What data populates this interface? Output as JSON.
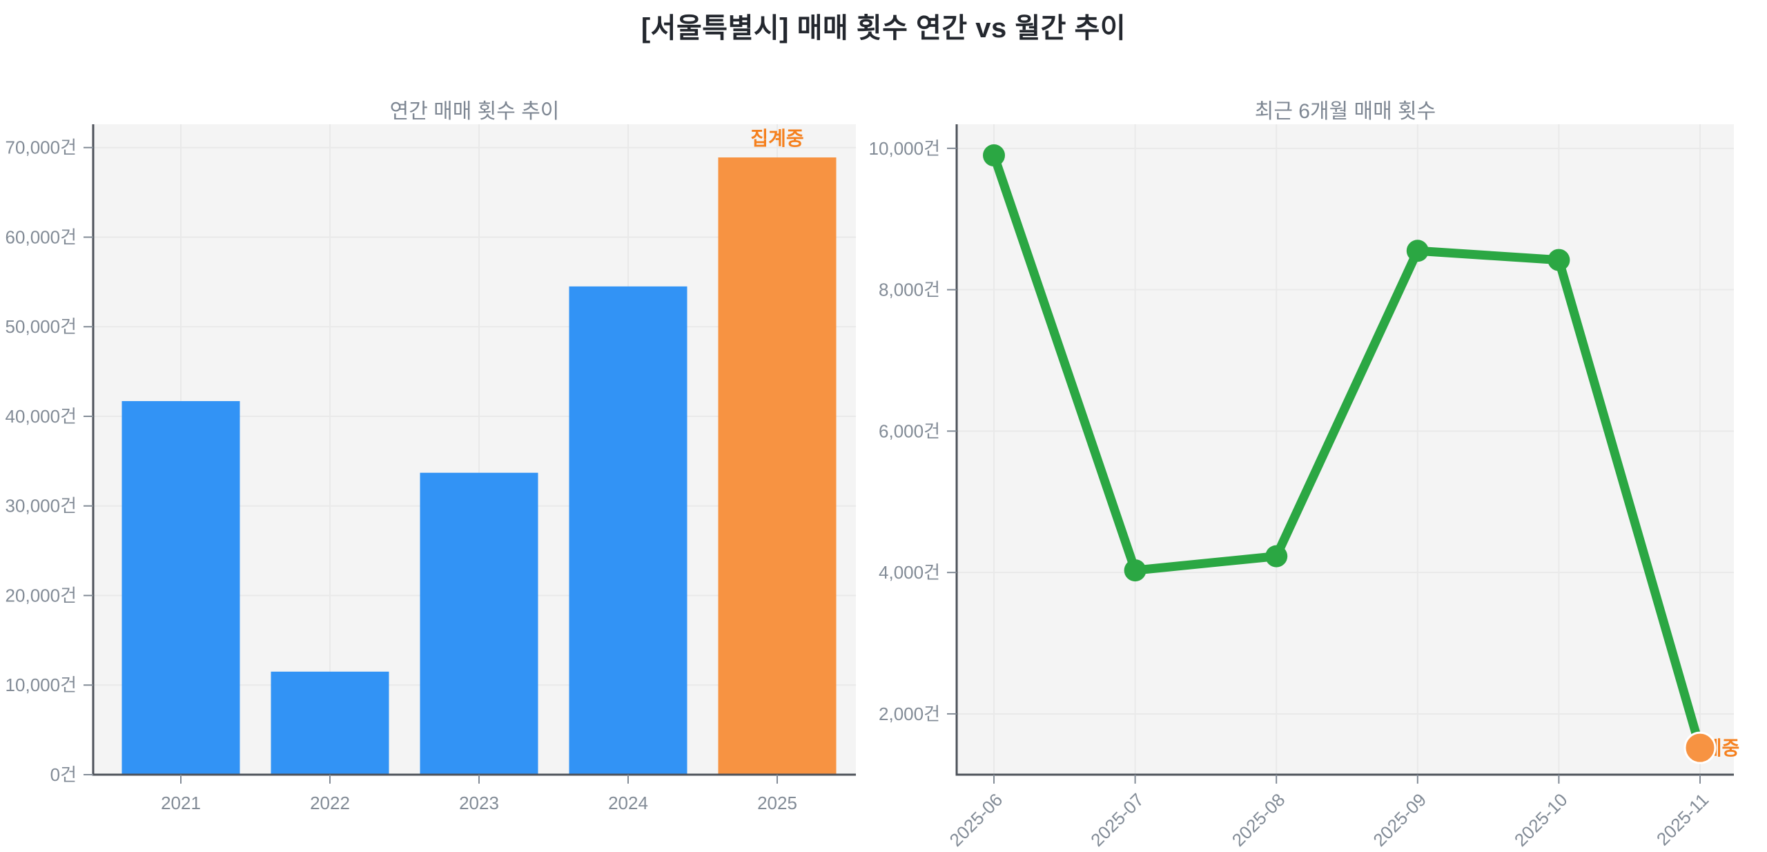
{
  "title": "[서울특별시] 매매 횟수 연간 vs 월간 추이",
  "theme": {
    "figure_bg": "#ffffff",
    "plot_bg": "#f4f4f4",
    "grid_color": "#e9e9e9",
    "axis_color": "#4d525a",
    "tick_label_color": "#828b96",
    "chart_title_color": "#7d8692",
    "main_title_color": "#23272e"
  },
  "chart_data": [
    {
      "type": "bar",
      "title": "연간 매매 횟수 추이",
      "unit": "건",
      "categories": [
        "2021",
        "2022",
        "2023",
        "2024",
        "2025"
      ],
      "values": [
        41700,
        11500,
        33700,
        54500,
        68900
      ],
      "bar_color": "#3293F5",
      "highlight": {
        "index": 4,
        "color": "#F79342",
        "label": "집계중",
        "label_color": "#F5801E"
      },
      "yticks": {
        "values": [
          0,
          10000,
          20000,
          30000,
          40000,
          50000,
          60000,
          70000
        ],
        "labels": [
          "0건",
          "10,000건",
          "20,000건",
          "30,000건",
          "40,000건",
          "50,000건",
          "60,000건",
          "70,000건"
        ]
      },
      "ylim": [
        0,
        72600
      ],
      "grid": true,
      "legend": false
    },
    {
      "type": "line",
      "title": "최근 6개월 매매 횟수",
      "unit": "건",
      "categories": [
        "2025-06",
        "2025-07",
        "2025-08",
        "2025-09",
        "2025-10",
        "2025-11"
      ],
      "values": [
        9900,
        4030,
        4230,
        8550,
        8420,
        1520
      ],
      "line_color": "#2BA743",
      "marker_color": "#2BA743",
      "highlight": {
        "index": 5,
        "color": "#F79342",
        "label": "집계중",
        "label_color": "#F5801E"
      },
      "yticks": {
        "values": [
          2000,
          4000,
          6000,
          8000,
          10000
        ],
        "labels": [
          "2,000건",
          "4,000건",
          "6,000건",
          "8,000건",
          "10,000건"
        ]
      },
      "ylim": [
        1140,
        10340
      ],
      "grid": true,
      "legend": false
    }
  ]
}
